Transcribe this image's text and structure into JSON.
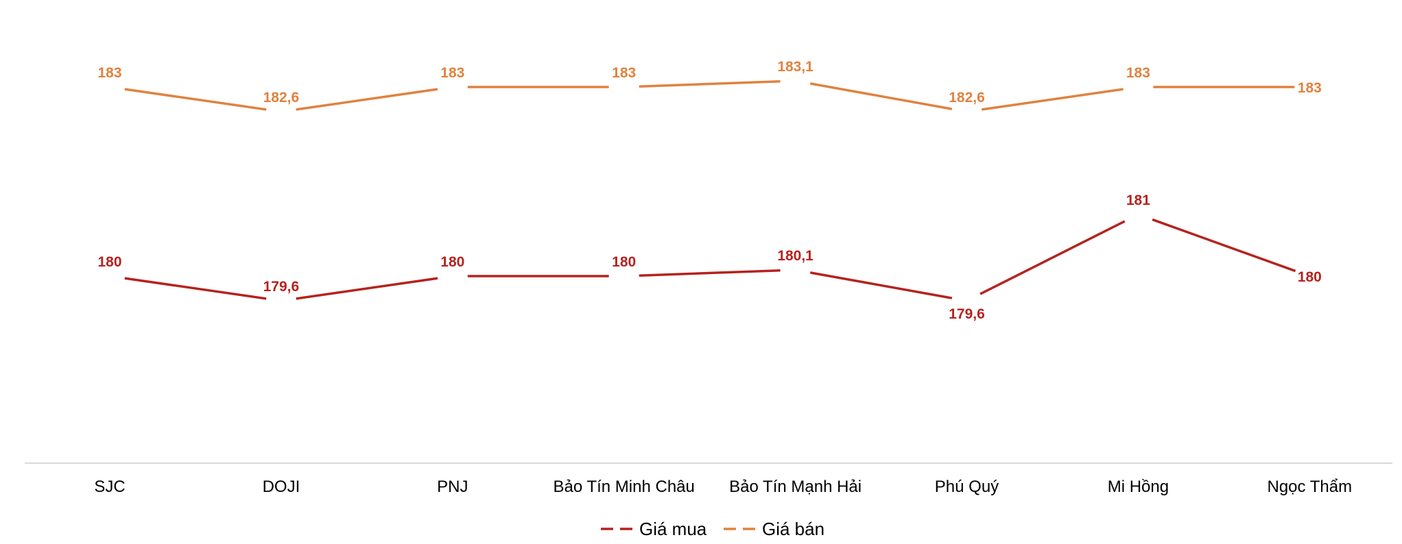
{
  "chart_data": {
    "type": "line",
    "categories": [
      "SJC",
      "DOJI",
      "PNJ",
      "Bảo Tín Minh Châu",
      "Bảo Tín Mạnh Hải",
      "Phú Quý",
      "Mi Hồng",
      "Ngọc Thẩm"
    ],
    "series": [
      {
        "name": "Giá mua",
        "values": [
          180,
          179.6,
          180,
          180,
          180.1,
          179.6,
          181,
          180
        ],
        "labels": [
          "180",
          "179,6",
          "180",
          "180",
          "180,1",
          "179,6",
          "181",
          "180"
        ],
        "color": "#b5231f"
      },
      {
        "name": "Giá bán",
        "values": [
          183,
          182.6,
          183,
          183,
          183.1,
          182.6,
          183,
          183
        ],
        "labels": [
          "183",
          "182,6",
          "183",
          "183",
          "183,1",
          "182,6",
          "183",
          "183"
        ],
        "color": "#e0823f"
      }
    ],
    "title": "",
    "xlabel": "",
    "ylabel": "",
    "ylim": [
      176,
      184.5
    ],
    "grid": false,
    "legend": "bottom-center",
    "axis_color": "#d9d9d9"
  }
}
